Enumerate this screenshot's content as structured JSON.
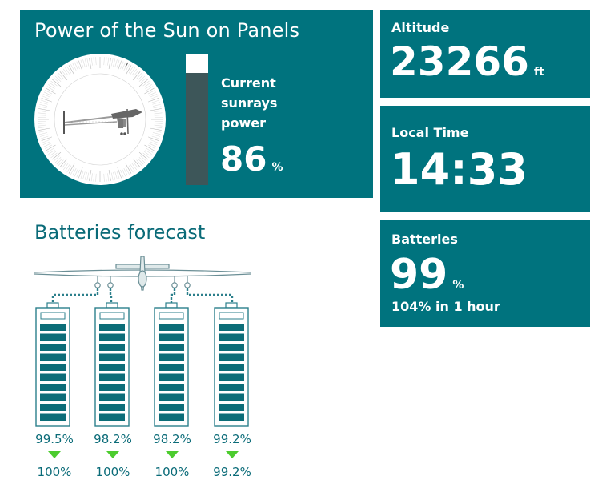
{
  "sun_panel": {
    "title": "Power of the Sun on Panels",
    "label": "Current sunrays power",
    "value": "86",
    "unit": "%",
    "fill_fraction": 0.86
  },
  "altitude": {
    "label": "Altitude",
    "value": "23266",
    "unit": "ft"
  },
  "local_time": {
    "label": "Local Time",
    "value": "14:33"
  },
  "batteries": {
    "label": "Batteries",
    "value": "99",
    "unit": "%",
    "forecast": "104% in 1 hour"
  },
  "forecast": {
    "title": "Batteries forecast",
    "cells": [
      {
        "current": "99.5%",
        "next": "100%"
      },
      {
        "current": "98.2%",
        "next": "100%"
      },
      {
        "current": "98.2%",
        "next": "100%"
      },
      {
        "current": "99.2%",
        "next": "99.2%"
      }
    ]
  },
  "colors": {
    "panel": "#00737e",
    "bar_track": "#3d5659",
    "text_teal": "#0a6b78",
    "arrow_green": "#4ccc2e"
  },
  "icons": {
    "dial": "sun-angle-dial-icon",
    "plane": "solar-plane-icon",
    "battery": "battery-icon",
    "arrow": "down-arrow-icon"
  }
}
